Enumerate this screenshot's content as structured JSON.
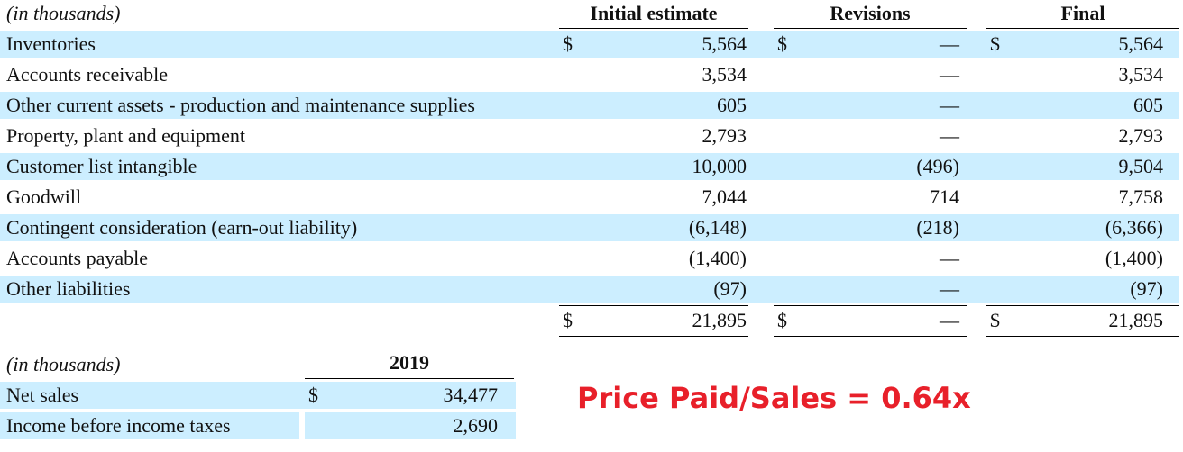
{
  "main_table": {
    "unit_label": "(in thousands)",
    "columns": [
      "Initial estimate",
      "Revisions",
      "Final"
    ],
    "rows": [
      {
        "label": "Inventories",
        "initial_sym": "$",
        "initial": "5,564",
        "rev_sym": "$",
        "revisions": "—",
        "final_sym": "$",
        "final": "5,564"
      },
      {
        "label": "Accounts receivable",
        "initial_sym": "",
        "initial": "3,534",
        "rev_sym": "",
        "revisions": "—",
        "final_sym": "",
        "final": "3,534"
      },
      {
        "label": "Other current assets - production and maintenance supplies",
        "initial_sym": "",
        "initial": "605",
        "rev_sym": "",
        "revisions": "—",
        "final_sym": "",
        "final": "605"
      },
      {
        "label": "Property, plant and equipment",
        "initial_sym": "",
        "initial": "2,793",
        "rev_sym": "",
        "revisions": "—",
        "final_sym": "",
        "final": "2,793"
      },
      {
        "label": "Customer list intangible",
        "initial_sym": "",
        "initial": "10,000",
        "rev_sym": "",
        "revisions": "(496)",
        "final_sym": "",
        "final": "9,504"
      },
      {
        "label": "Goodwill",
        "initial_sym": "",
        "initial": "7,044",
        "rev_sym": "",
        "revisions": "714",
        "final_sym": "",
        "final": "7,758"
      },
      {
        "label": "Contingent consideration (earn-out liability)",
        "initial_sym": "",
        "initial": "(6,148)",
        "rev_sym": "",
        "revisions": "(218)",
        "final_sym": "",
        "final": "(6,366)"
      },
      {
        "label": "Accounts payable",
        "initial_sym": "",
        "initial": "(1,400)",
        "rev_sym": "",
        "revisions": "—",
        "final_sym": "",
        "final": "(1,400)"
      },
      {
        "label": "Other liabilities",
        "initial_sym": "",
        "initial": "(97)",
        "rev_sym": "",
        "revisions": "—",
        "final_sym": "",
        "final": "(97)"
      }
    ],
    "total": {
      "label": "",
      "initial_sym": "$",
      "initial": "21,895",
      "rev_sym": "$",
      "revisions": "—",
      "final_sym": "$",
      "final": "21,895"
    }
  },
  "sales_table": {
    "unit_label": "(in thousands)",
    "column": "2019",
    "rows": [
      {
        "label": "Net sales",
        "sym": "$",
        "value": "34,477"
      },
      {
        "label": "Income before income taxes",
        "sym": "",
        "value": "2,690"
      }
    ]
  },
  "callout": "Price Paid/Sales = 0.64x"
}
